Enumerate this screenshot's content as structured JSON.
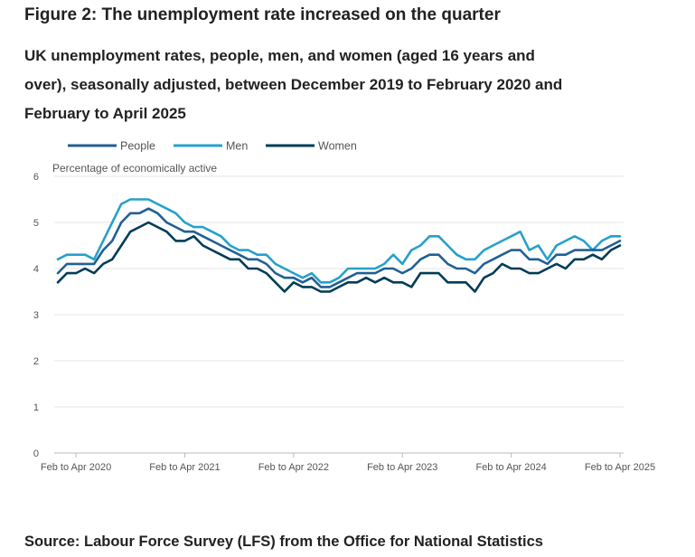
{
  "figure_title": "Figure 2: The unemployment rate increased on the quarter",
  "subtitle": "UK unemployment rates, people, men, and women (aged 16 years and over), seasonally adjusted, between December 2019 to February 2020 and February to April 2025",
  "source": "Source: Labour Force Survey (LFS) from the Office for National Statistics",
  "chart_data": {
    "type": "line",
    "ylabel": "Percentage of economically active",
    "ylim": [
      0,
      6
    ],
    "yticks": [
      "0",
      "1",
      "2",
      "3",
      "4",
      "5",
      "6"
    ],
    "xtick_labels": [
      "Feb to Apr 2020",
      "Feb to Apr 2021",
      "Feb to Apr 2022",
      "Feb to Apr 2023",
      "Feb to Apr 2024",
      "Feb to Apr 2025"
    ],
    "grid": true,
    "legend_position": "top-left",
    "colors": {
      "People": "#206095",
      "Men": "#27a0cc",
      "Women": "#003c57"
    },
    "x": [
      "Dec 2019 to Feb 2020",
      "Jan to Mar 2020",
      "Feb to Apr 2020",
      "Mar to May 2020",
      "Apr to Jun 2020",
      "May to Jul 2020",
      "Jun to Aug 2020",
      "Jul to Sep 2020",
      "Aug to Oct 2020",
      "Sep to Nov 2020",
      "Oct to Dec 2020",
      "Nov 2020 to Jan 2021",
      "Dec 2020 to Feb 2021",
      "Jan to Mar 2021",
      "Feb to Apr 2021",
      "Mar to May 2021",
      "Apr to Jun 2021",
      "May to Jul 2021",
      "Jun to Aug 2021",
      "Jul to Sep 2021",
      "Aug to Oct 2021",
      "Sep to Nov 2021",
      "Oct to Dec 2021",
      "Nov 2021 to Jan 2022",
      "Dec 2021 to Feb 2022",
      "Jan to Mar 2022",
      "Feb to Apr 2022",
      "Mar to May 2022",
      "Apr to Jun 2022",
      "May to Jul 2022",
      "Jun to Aug 2022",
      "Jul to Sep 2022",
      "Aug to Oct 2022",
      "Sep to Nov 2022",
      "Oct to Dec 2022",
      "Nov 2022 to Jan 2023",
      "Dec 2022 to Feb 2023",
      "Jan to Mar 2023",
      "Feb to Apr 2023",
      "Mar to May 2023",
      "Apr to Jun 2023",
      "May to Jul 2023",
      "Jun to Aug 2023",
      "Jul to Sep 2023",
      "Aug to Oct 2023",
      "Sep to Nov 2023",
      "Oct to Dec 2023",
      "Nov 2023 to Jan 2024",
      "Dec 2023 to Feb 2024",
      "Jan to Mar 2024",
      "Feb to Apr 2024",
      "Mar to May 2024",
      "Apr to Jun 2024",
      "May to Jul 2024",
      "Jun to Aug 2024",
      "Jul to Sep 2024",
      "Aug to Oct 2024",
      "Sep to Nov 2024",
      "Oct to Dec 2024",
      "Nov 2024 to Jan 2025",
      "Dec 2024 to Feb 2025",
      "Jan to Mar 2025",
      "Feb to Apr 2025"
    ],
    "series": [
      {
        "name": "People",
        "values": [
          3.9,
          4.1,
          4.1,
          4.1,
          4.1,
          4.4,
          4.6,
          5.0,
          5.2,
          5.2,
          5.3,
          5.2,
          5.0,
          4.9,
          4.8,
          4.8,
          4.7,
          4.6,
          4.5,
          4.4,
          4.3,
          4.2,
          4.2,
          4.1,
          3.9,
          3.8,
          3.8,
          3.7,
          3.8,
          3.6,
          3.6,
          3.7,
          3.8,
          3.9,
          3.9,
          3.9,
          4.0,
          4.0,
          3.9,
          4.0,
          4.2,
          4.3,
          4.3,
          4.1,
          4.0,
          4.0,
          3.9,
          4.1,
          4.2,
          4.3,
          4.4,
          4.4,
          4.2,
          4.2,
          4.1,
          4.3,
          4.3,
          4.4,
          4.4,
          4.4,
          4.4,
          4.5,
          4.6
        ]
      },
      {
        "name": "Men",
        "values": [
          4.2,
          4.3,
          4.3,
          4.3,
          4.2,
          4.6,
          5.0,
          5.4,
          5.5,
          5.5,
          5.5,
          5.4,
          5.3,
          5.2,
          5.0,
          4.9,
          4.9,
          4.8,
          4.7,
          4.5,
          4.4,
          4.4,
          4.3,
          4.3,
          4.1,
          4.0,
          3.9,
          3.8,
          3.9,
          3.7,
          3.7,
          3.8,
          4.0,
          4.0,
          4.0,
          4.0,
          4.1,
          4.3,
          4.1,
          4.4,
          4.5,
          4.7,
          4.7,
          4.5,
          4.3,
          4.2,
          4.2,
          4.4,
          4.5,
          4.6,
          4.7,
          4.8,
          4.4,
          4.5,
          4.2,
          4.5,
          4.6,
          4.7,
          4.6,
          4.4,
          4.6,
          4.7,
          4.7
        ]
      },
      {
        "name": "Women",
        "values": [
          3.7,
          3.9,
          3.9,
          4.0,
          3.9,
          4.1,
          4.2,
          4.5,
          4.8,
          4.9,
          5.0,
          4.9,
          4.8,
          4.6,
          4.6,
          4.7,
          4.5,
          4.4,
          4.3,
          4.2,
          4.2,
          4.0,
          4.0,
          3.9,
          3.7,
          3.5,
          3.7,
          3.6,
          3.6,
          3.5,
          3.5,
          3.6,
          3.7,
          3.7,
          3.8,
          3.7,
          3.8,
          3.7,
          3.7,
          3.6,
          3.9,
          3.9,
          3.9,
          3.7,
          3.7,
          3.7,
          3.5,
          3.8,
          3.9,
          4.1,
          4.0,
          4.0,
          3.9,
          3.9,
          4.0,
          4.1,
          4.0,
          4.2,
          4.2,
          4.3,
          4.2,
          4.4,
          4.5
        ]
      }
    ]
  }
}
